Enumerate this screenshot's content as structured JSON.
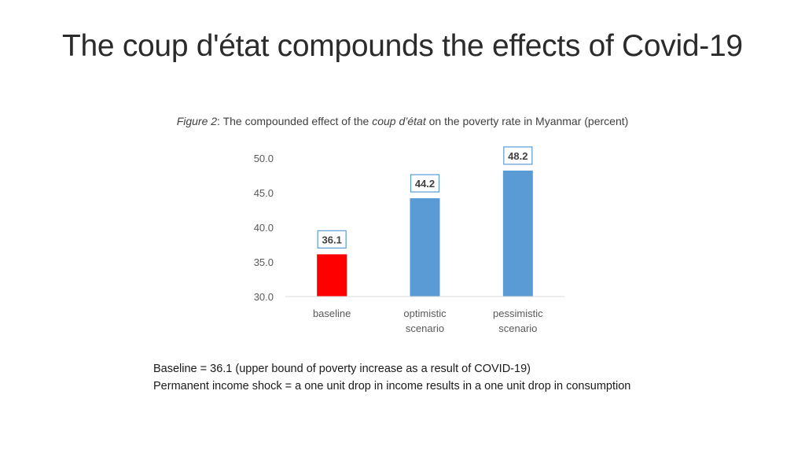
{
  "slide": {
    "title": "The coup d'état compounds the effects of Covid-19"
  },
  "caption": {
    "figure_label": "Figure 2",
    "text_before": ": The compounded effect of the ",
    "italic_term": "coup d’état",
    "text_after": " on the poverty rate in Myanmar (percent)"
  },
  "chart_data": {
    "type": "bar",
    "title": "",
    "xlabel": "",
    "ylabel": "",
    "categories": [
      [
        "baseline"
      ],
      [
        "optimistic",
        "scenario"
      ],
      [
        "pessimistic",
        "scenario"
      ]
    ],
    "values": [
      36.1,
      44.2,
      48.2
    ],
    "data_labels": [
      "36.1",
      "44.2",
      "48.2"
    ],
    "bar_colors": [
      "#ff0000",
      "#5b9bd5",
      "#5b9bd5"
    ],
    "ylim": [
      30.0,
      50.0
    ],
    "yticks": [
      {
        "value": 30.0,
        "label": "30.0"
      },
      {
        "value": 35.0,
        "label": "35.0"
      },
      {
        "value": 40.0,
        "label": "40.0"
      },
      {
        "value": 45.0,
        "label": "45.0"
      },
      {
        "value": 50.0,
        "label": "50.0"
      }
    ],
    "grid": false,
    "label_box_border_color": "#5b9bd5"
  },
  "notes": {
    "line1": "Baseline = 36.1 (upper bound of poverty increase as a result of COVID-19)",
    "line2": "Permanent income shock = a one unit drop in income results in a one unit drop in consumption"
  }
}
